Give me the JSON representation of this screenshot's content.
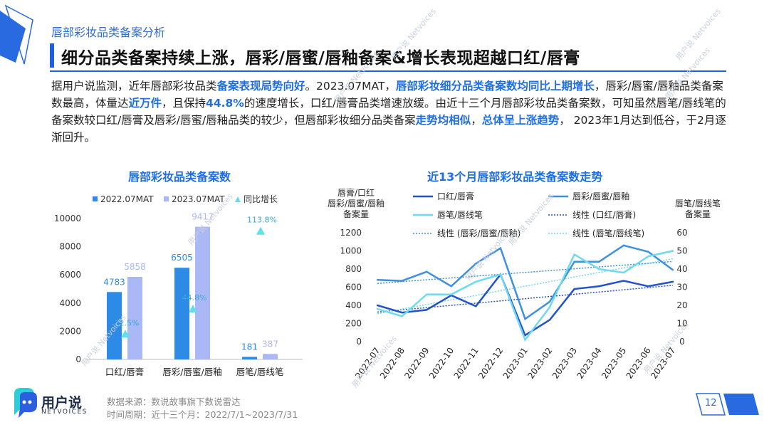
{
  "header": {
    "subtitle": "唇部彩妆品类备案分析",
    "title": "细分品类备案持续上涨，唇彩/唇蜜/唇釉备案&增长表现超越口红/唇膏"
  },
  "paragraph": [
    {
      "t": "据用户说监测，近年唇部彩妆品类",
      "h": false
    },
    {
      "t": "备案表现局势向好",
      "h": true
    },
    {
      "t": "。2023.07MAT，",
      "h": false
    },
    {
      "t": "唇部彩妆细分品类备案数均同比上期增长",
      "h": true
    },
    {
      "t": "，唇彩/唇蜜/唇釉品类备案数最高，体量达",
      "h": false
    },
    {
      "t": "近万件",
      "h": true
    },
    {
      "t": "，且保持",
      "h": false
    },
    {
      "t": "44.8%",
      "h": true
    },
    {
      "t": "的速度增长，口红/唇膏品类增速放缓。由近十三个月唇部彩妆品类备案数，可知虽然唇笔/唇线笔的备案数较口红/唇膏及唇彩/唇蜜/唇釉品类的较少，但唇部彩妆细分品类备案",
      "h": false
    },
    {
      "t": "走势均相似",
      "h": true
    },
    {
      "t": "，",
      "h": false
    },
    {
      "t": "总体呈上涨趋势",
      "h": true
    },
    {
      "t": "， 2023年1月达到低谷，于2月逐渐回升。",
      "h": false
    }
  ],
  "chart_data": [
    {
      "type": "bar",
      "title": "唇部彩妆品类备案数",
      "categories": [
        "口红/唇膏",
        "唇彩/唇蜜/唇釉",
        "唇笔/唇线笔"
      ],
      "series": [
        {
          "name": "2022.07MAT",
          "values": [
            4783,
            6505,
            181
          ],
          "color": "#2d8be6"
        },
        {
          "name": "2023.07MAT",
          "values": [
            5858,
            9417,
            387
          ],
          "color": "#aab8f5"
        }
      ],
      "growth": {
        "name": "同比增长",
        "values": [
          "22.5%",
          "44.8%",
          "113.8%"
        ],
        "numeric": [
          22.5,
          44.8,
          113.8
        ],
        "color": "#5ee0ea"
      },
      "ylim": [
        0,
        10000
      ],
      "yticks": [
        0,
        2000,
        4000,
        6000,
        8000,
        10000
      ]
    },
    {
      "type": "line",
      "title": "近13个月唇部彩妆品类备案数走势",
      "x": [
        "2022-07",
        "2022-08",
        "2022-09",
        "2022-10",
        "2022-11",
        "2022-12",
        "2023-01",
        "2023-02",
        "2023-03",
        "2023-04",
        "2023-05",
        "2023-06",
        "2023-07"
      ],
      "ylabel_left": [
        "唇膏/口红",
        "唇彩/唇蜜/唇釉",
        "备案量"
      ],
      "ylabel_right": [
        "唇笔/唇线笔",
        "备案量"
      ],
      "ylim_left": [
        0,
        1200
      ],
      "yticks_left": [
        0,
        200,
        400,
        600,
        800,
        1000,
        1200
      ],
      "ylim_right": [
        0,
        60
      ],
      "yticks_right": [
        0,
        10,
        20,
        30,
        40,
        50,
        60
      ],
      "series": [
        {
          "name": "口红/唇膏",
          "axis": "left",
          "color": "#2352c9",
          "values": [
            400,
            320,
            350,
            510,
            390,
            740,
            70,
            240,
            580,
            610,
            670,
            610,
            660
          ]
        },
        {
          "name": "唇彩/唇蜜/唇釉",
          "axis": "left",
          "color": "#3d8fe0",
          "values": [
            680,
            670,
            770,
            610,
            860,
            1030,
            250,
            440,
            880,
            880,
            1060,
            990,
            790
          ]
        },
        {
          "name": "唇笔/唇线笔",
          "axis": "right",
          "color": "#6fd9ef",
          "values": [
            18,
            14,
            26,
            26,
            33,
            37,
            1,
            19,
            48,
            40,
            38,
            47,
            50
          ]
        }
      ],
      "trendlines": [
        {
          "name": "线性 (口红/唇膏)",
          "color": "#2352c9"
        },
        {
          "name": "线性 (唇彩/唇蜜/唇釉)",
          "color": "#3d8fe0"
        },
        {
          "name": "线性 (唇笔/唇线笔)",
          "color": "#6fd9ef"
        }
      ]
    }
  ],
  "footer": {
    "brand_cn": "用户说",
    "brand_en": "NETVOICES",
    "source": "数据来源：数说故事旗下数说雷达",
    "period": "时间周期：近十三个月：2022/7/1~2023/7/31",
    "page": "12"
  },
  "watermark": {
    "cn": "用户说",
    "en": "Netvoices"
  }
}
